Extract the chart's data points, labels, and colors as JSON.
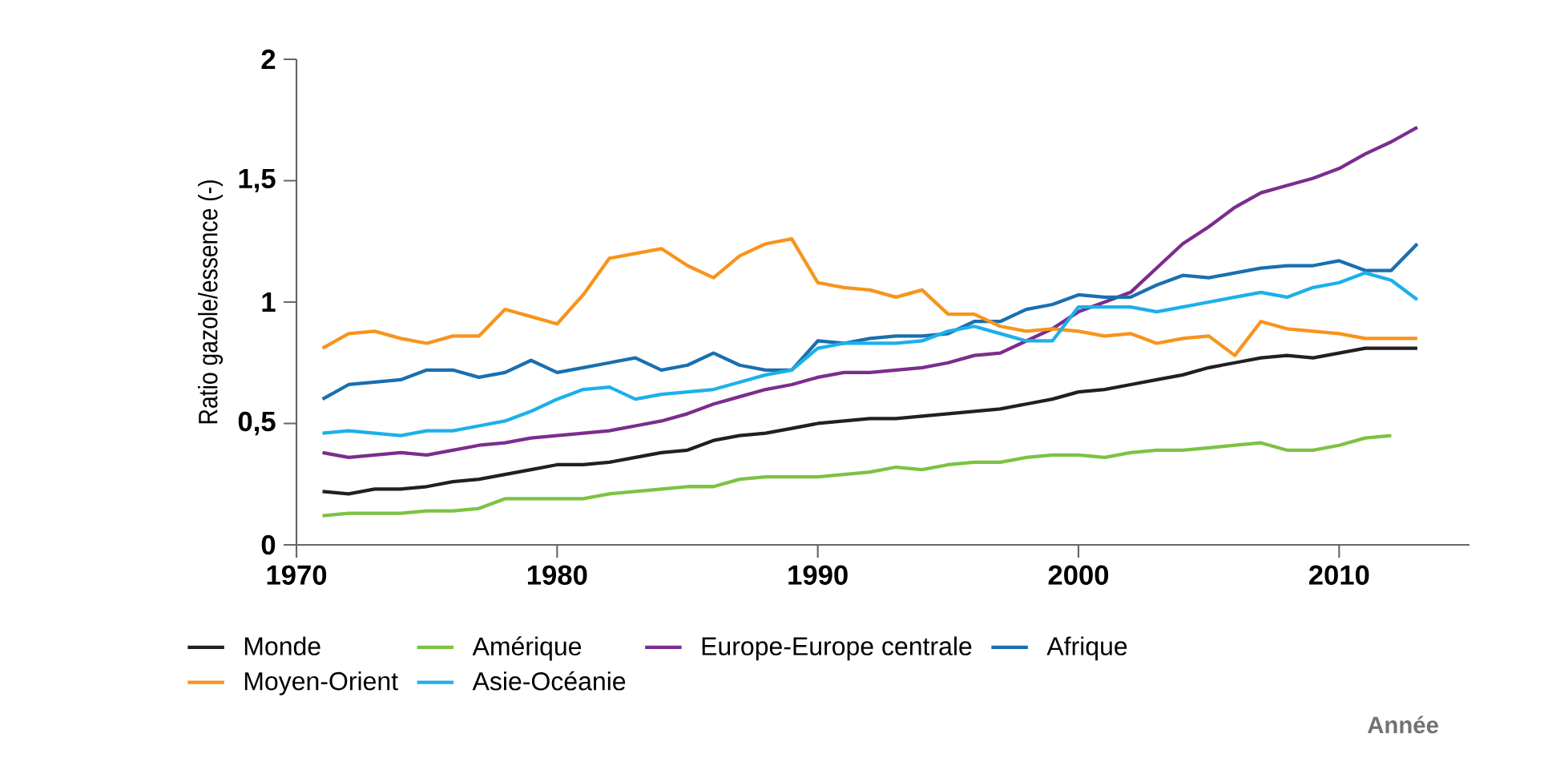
{
  "chart_data": {
    "type": "line",
    "annotations": [
      "Année"
    ],
    "ylabel": "Ratio gazole/essence (-)",
    "x": [
      1971,
      1972,
      1973,
      1974,
      1975,
      1976,
      1977,
      1978,
      1979,
      1980,
      1981,
      1982,
      1983,
      1984,
      1985,
      1986,
      1987,
      1988,
      1989,
      1990,
      1991,
      1992,
      1993,
      1994,
      1995,
      1996,
      1997,
      1998,
      1999,
      2000,
      2001,
      2002,
      2003,
      2004,
      2005,
      2006,
      2007,
      2008,
      2009,
      2010,
      2011,
      2012,
      2013
    ],
    "series": [
      {
        "name": "Monde",
        "color": "#231f20",
        "values": [
          0.22,
          0.21,
          0.23,
          0.23,
          0.24,
          0.26,
          0.27,
          0.29,
          0.31,
          0.33,
          0.33,
          0.34,
          0.36,
          0.38,
          0.39,
          0.43,
          0.45,
          0.46,
          0.48,
          0.5,
          0.51,
          0.52,
          0.52,
          0.53,
          0.54,
          0.55,
          0.56,
          0.58,
          0.6,
          0.63,
          0.64,
          0.66,
          0.68,
          0.7,
          0.73,
          0.75,
          0.77,
          0.78,
          0.77,
          0.79,
          0.81,
          0.81,
          0.81
        ]
      },
      {
        "name": "Amérique",
        "color": "#7dc242",
        "values": [
          0.12,
          0.13,
          0.13,
          0.13,
          0.14,
          0.14,
          0.15,
          0.19,
          0.19,
          0.19,
          0.19,
          0.21,
          0.22,
          0.23,
          0.24,
          0.24,
          0.27,
          0.28,
          0.28,
          0.28,
          0.29,
          0.3,
          0.32,
          0.31,
          0.33,
          0.34,
          0.34,
          0.36,
          0.37,
          0.37,
          0.36,
          0.38,
          0.39,
          0.39,
          0.4,
          0.41,
          0.42,
          0.39,
          0.39,
          0.41,
          0.44,
          0.45,
          null
        ]
      },
      {
        "name": "Europe-Europe centrale",
        "color": "#7b2d8e",
        "values": [
          0.38,
          0.36,
          0.37,
          0.38,
          0.37,
          0.39,
          0.41,
          0.42,
          0.44,
          0.45,
          0.46,
          0.47,
          0.49,
          0.51,
          0.54,
          0.58,
          0.61,
          0.64,
          0.66,
          0.69,
          0.71,
          0.71,
          0.72,
          0.73,
          0.75,
          0.78,
          0.79,
          0.84,
          0.89,
          0.96,
          1.0,
          1.04,
          1.14,
          1.24,
          1.31,
          1.39,
          1.45,
          1.48,
          1.51,
          1.55,
          1.61,
          1.66,
          1.72
        ]
      },
      {
        "name": "Afrique",
        "color": "#1a6faf",
        "values": [
          0.6,
          0.66,
          0.67,
          0.68,
          0.72,
          0.72,
          0.69,
          0.71,
          0.76,
          0.71,
          0.73,
          0.75,
          0.77,
          0.72,
          0.74,
          0.79,
          0.74,
          0.72,
          0.72,
          0.84,
          0.83,
          0.85,
          0.86,
          0.86,
          0.87,
          0.92,
          0.92,
          0.97,
          0.99,
          1.03,
          1.02,
          1.02,
          1.07,
          1.11,
          1.1,
          1.12,
          1.14,
          1.15,
          1.15,
          1.17,
          1.13,
          1.13,
          1.24
        ]
      },
      {
        "name": "Moyen-Orient",
        "color": "#f7941d",
        "values": [
          0.81,
          0.87,
          0.88,
          0.85,
          0.83,
          0.86,
          0.86,
          0.97,
          0.94,
          0.91,
          1.03,
          1.18,
          1.2,
          1.22,
          1.15,
          1.1,
          1.19,
          1.24,
          1.26,
          1.08,
          1.06,
          1.05,
          1.02,
          1.05,
          0.95,
          0.95,
          0.9,
          0.88,
          0.89,
          0.88,
          0.86,
          0.87,
          0.83,
          0.85,
          0.86,
          0.78,
          0.92,
          0.89,
          0.88,
          0.87,
          0.85,
          0.85,
          0.85
        ]
      },
      {
        "name": "Asie-Océanie",
        "color": "#1cb0ea",
        "values": [
          0.46,
          0.47,
          0.46,
          0.45,
          0.47,
          0.47,
          0.49,
          0.51,
          0.55,
          0.6,
          0.64,
          0.65,
          0.6,
          0.62,
          0.63,
          0.64,
          0.67,
          0.7,
          0.72,
          0.81,
          0.83,
          0.83,
          0.83,
          0.84,
          0.88,
          0.9,
          0.87,
          0.84,
          0.84,
          0.98,
          0.98,
          0.98,
          0.96,
          0.98,
          1.0,
          1.02,
          1.04,
          1.02,
          1.06,
          1.08,
          1.12,
          1.09,
          1.01
        ]
      }
    ],
    "xlim": [
      1970,
      2015
    ],
    "xticks": [
      1970,
      1980,
      1990,
      2000,
      2010
    ],
    "ylim": [
      0,
      2
    ],
    "yticks": [
      0,
      {
        "value": 0.5,
        "label": "0,5"
      },
      1,
      {
        "value": 1.5,
        "label": "1,5"
      },
      2
    ],
    "grid": false,
    "legend": "bottom",
    "marker": "none",
    "line_style": "solid"
  }
}
